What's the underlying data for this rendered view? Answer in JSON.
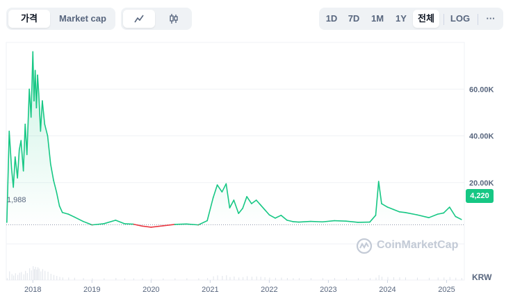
{
  "toolbar": {
    "view_tabs": [
      {
        "label": "가격"
      },
      {
        "label": "Market cap"
      }
    ],
    "chart_type_icons": [
      "line-chart-icon",
      "candlestick-icon"
    ],
    "ranges": [
      {
        "label": "1D"
      },
      {
        "label": "7D"
      },
      {
        "label": "1M"
      },
      {
        "label": "1Y"
      },
      {
        "label": "전체"
      }
    ],
    "scale_label": "LOG",
    "more_label": "···"
  },
  "chart_data": {
    "type": "line",
    "title": "",
    "currency": "KRW",
    "y_ticks": [
      {
        "value": 20000,
        "label": "20.00K"
      },
      {
        "value": 40000,
        "label": "40.00K"
      },
      {
        "value": 60000,
        "label": "60.00K"
      }
    ],
    "x_ticks": [
      {
        "x": 2018.0,
        "label": "2018"
      },
      {
        "x": 2019.0,
        "label": "2019"
      },
      {
        "x": 2020.0,
        "label": "2020"
      },
      {
        "x": 2021.0,
        "label": "2021"
      },
      {
        "x": 2022.0,
        "label": "2022"
      },
      {
        "x": 2023.0,
        "label": "2023"
      },
      {
        "x": 2024.0,
        "label": "2024"
      },
      {
        "x": 2025.0,
        "label": "2025"
      }
    ],
    "x_range": [
      2017.55,
      2025.3
    ],
    "y_range": [
      0,
      80000
    ],
    "reference_value": 1988,
    "reference_label": "1,988",
    "current_value": 4220,
    "current_label": "4,220",
    "up_color": "#16c784",
    "down_color": "#ea3943",
    "x": [
      2017.56,
      2017.6,
      2017.64,
      2017.67,
      2017.7,
      2017.74,
      2017.77,
      2017.8,
      2017.84,
      2017.87,
      2017.9,
      2017.94,
      2017.97,
      2018.0,
      2018.02,
      2018.04,
      2018.06,
      2018.08,
      2018.1,
      2018.13,
      2018.16,
      2018.2,
      2018.25,
      2018.3,
      2018.35,
      2018.4,
      2018.45,
      2018.5,
      2018.6,
      2018.7,
      2018.85,
      2019.0,
      2019.2,
      2019.4,
      2019.55,
      2019.7,
      2019.85,
      2020.0,
      2020.2,
      2020.4,
      2020.6,
      2020.8,
      2020.95,
      2021.05,
      2021.12,
      2021.2,
      2021.27,
      2021.33,
      2021.4,
      2021.48,
      2021.55,
      2021.62,
      2021.7,
      2021.78,
      2021.85,
      2021.92,
      2022.0,
      2022.1,
      2022.2,
      2022.3,
      2022.4,
      2022.5,
      2022.7,
      2022.9,
      2023.1,
      2023.3,
      2023.5,
      2023.7,
      2023.8,
      2023.85,
      2023.9,
      2024.0,
      2024.1,
      2024.2,
      2024.3,
      2024.5,
      2024.7,
      2024.85,
      2024.95,
      2025.05,
      2025.15,
      2025.25
    ],
    "values": [
      3000,
      42000,
      26000,
      18000,
      31000,
      22000,
      34000,
      38000,
      25000,
      45000,
      32000,
      60000,
      48000,
      76000,
      55000,
      68000,
      52000,
      66000,
      58000,
      42000,
      55000,
      45000,
      40000,
      28000,
      21000,
      16000,
      10000,
      7200,
      6500,
      5300,
      3400,
      1900,
      2400,
      3900,
      2400,
      2200,
      1400,
      900,
      1500,
      2100,
      2300,
      1900,
      3700,
      13500,
      19000,
      16000,
      19500,
      9200,
      12500,
      6800,
      9000,
      14000,
      11000,
      12500,
      10500,
      8500,
      6200,
      4800,
      6000,
      3900,
      3300,
      3100,
      3400,
      3200,
      3700,
      3500,
      3000,
      3100,
      6000,
      20500,
      11000,
      9500,
      8500,
      7500,
      7200,
      6200,
      5000,
      6500,
      7000,
      9500,
      5500,
      4220
    ]
  }
}
